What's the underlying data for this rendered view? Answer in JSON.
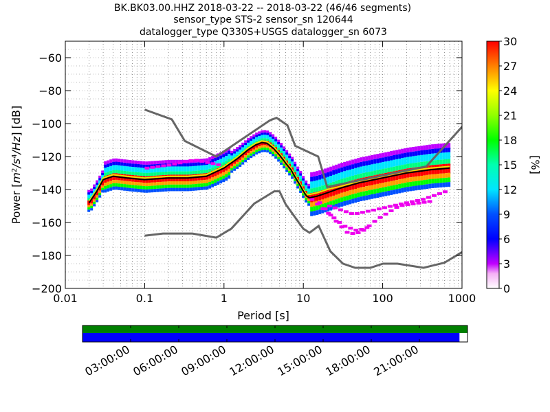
{
  "title": {
    "line1": "BK.BK03.00.HHZ   2018-03-22 -- 2018-03-22  (46/46 segments)",
    "line2": "sensor_type STS-2 sensor_sn 120644",
    "line3": "datalogger_type Q330S+USGS datalogger_sn 6073"
  },
  "colors": {
    "model_line": "#666666",
    "mean_line": "#000000",
    "mode_line": "#e8e800",
    "coverage_top": "#008000",
    "coverage_bottom": "#0000ff"
  },
  "chart_data": {
    "type": "heatmap",
    "xlabel": "Period [s]",
    "ylabel": "Power [m²/s⁴/Hz] [dB]",
    "xscale": "log",
    "xlim": [
      0.01,
      1000
    ],
    "ylim": [
      -200,
      -50
    ],
    "xticks": [
      0.01,
      0.1,
      1,
      10,
      100,
      1000
    ],
    "xtick_labels": [
      "0.01",
      "0.1",
      "1",
      "10",
      "100",
      "1000"
    ],
    "yticks": [
      -200,
      -180,
      -160,
      -140,
      -120,
      -100,
      -80,
      -60
    ],
    "ytick_labels": [
      "−200",
      "−180",
      "−160",
      "−140",
      "−120",
      "−100",
      "−80",
      "−60"
    ],
    "grid": true,
    "colorbar": {
      "label": "[%]",
      "range": [
        0,
        30
      ],
      "ticks": [
        0,
        3,
        6,
        9,
        12,
        15,
        18,
        21,
        24,
        27,
        30
      ],
      "tick_labels": [
        "0",
        "3",
        "6",
        "9",
        "12",
        "15",
        "18",
        "21",
        "24",
        "27",
        "30"
      ]
    },
    "noise_models": [
      {
        "name": "high noise model",
        "x": [
          0.1,
          0.22,
          0.32,
          0.8,
          3.8,
          4.6,
          6.3,
          7.9,
          15.4,
          20,
          354.8,
          10000
        ],
        "y": [
          -91.5,
          -97.4,
          -110.5,
          -120,
          -98,
          -96.5,
          -101,
          -113.5,
          -120,
          -138.5,
          -126,
          -48.5
        ]
      },
      {
        "name": "low noise model",
        "x": [
          0.1,
          0.17,
          0.4,
          0.8,
          1.24,
          2.4,
          4.3,
          5,
          6,
          10,
          12,
          15.6,
          21.9,
          31.6,
          45,
          70,
          101,
          154,
          328,
          600,
          1000
        ],
        "y": [
          -168,
          -166.7,
          -166.7,
          -169.2,
          -163.7,
          -148.6,
          -141.1,
          -141.1,
          -149,
          -163.8,
          -166.2,
          -162.1,
          -177.5,
          -185,
          -187.5,
          -187.5,
          -185,
          -185,
          -187.5,
          -184.4,
          -178
        ]
      }
    ],
    "mean_curve": {
      "x": [
        0.02,
        0.025,
        0.03,
        0.04,
        0.06,
        0.1,
        0.2,
        0.35,
        0.6,
        1,
        1.5,
        2,
        2.5,
        3,
        3.5,
        4.2,
        5,
        6,
        7,
        8,
        9,
        10,
        11,
        12,
        15,
        20,
        30,
        50,
        100,
        200,
        400,
        700
      ],
      "y": [
        -148,
        -141,
        -134,
        -132,
        -133,
        -134,
        -133,
        -133,
        -132,
        -127,
        -121,
        -116,
        -113,
        -111.5,
        -112,
        -115,
        -119,
        -124,
        -128,
        -133,
        -137,
        -141,
        -144,
        -145,
        -144,
        -142,
        -139,
        -136,
        -133,
        -130,
        -128,
        -127
      ]
    },
    "mode_curve": {
      "x": [
        0.02,
        0.025,
        0.03,
        0.04,
        0.06,
        0.1,
        0.2,
        0.35,
        0.6,
        1,
        1.5,
        2,
        2.5,
        3,
        3.5,
        4.2,
        5,
        6,
        7,
        8,
        9,
        10,
        11,
        12,
        15,
        20,
        30,
        50,
        100,
        200,
        400,
        700
      ],
      "y": [
        -147,
        -140,
        -133,
        -131,
        -132,
        -133,
        -132,
        -132,
        -131,
        -126,
        -120,
        -115,
        -112,
        -110.5,
        -111,
        -114,
        -118,
        -123,
        -127,
        -132,
        -136,
        -140,
        -143,
        -143,
        -142,
        -140,
        -138,
        -135,
        -132,
        -129,
        -127,
        -126
      ]
    },
    "outlier_curves": [
      {
        "x": [
          0.1,
          0.2,
          0.4,
          0.8
        ],
        "y": [
          -127,
          -125,
          -122,
          -125
        ]
      },
      {
        "x": [
          12,
          20,
          30,
          45,
          60
        ],
        "y": [
          -146,
          -155,
          -162,
          -165,
          -163
        ]
      },
      {
        "x": [
          15,
          25,
          35,
          50,
          80,
          150,
          400
        ],
        "y": [
          -148,
          -160,
          -167,
          -166,
          -158,
          -150,
          -147
        ]
      },
      {
        "x": [
          20,
          40,
          80,
          150,
          300,
          600
        ],
        "y": [
          -150,
          -155,
          -152,
          -149,
          -146,
          -141
        ]
      }
    ],
    "timeline": {
      "tick_labels": [
        "03:00:00",
        "06:00:00",
        "09:00:00",
        "12:00:00",
        "15:00:00",
        "18:00:00",
        "21:00:00"
      ],
      "tick_hours": [
        3,
        6,
        9,
        12,
        15,
        18,
        21
      ],
      "range_hours": [
        0,
        24
      ],
      "coverage_end_hour": 23.5
    }
  }
}
